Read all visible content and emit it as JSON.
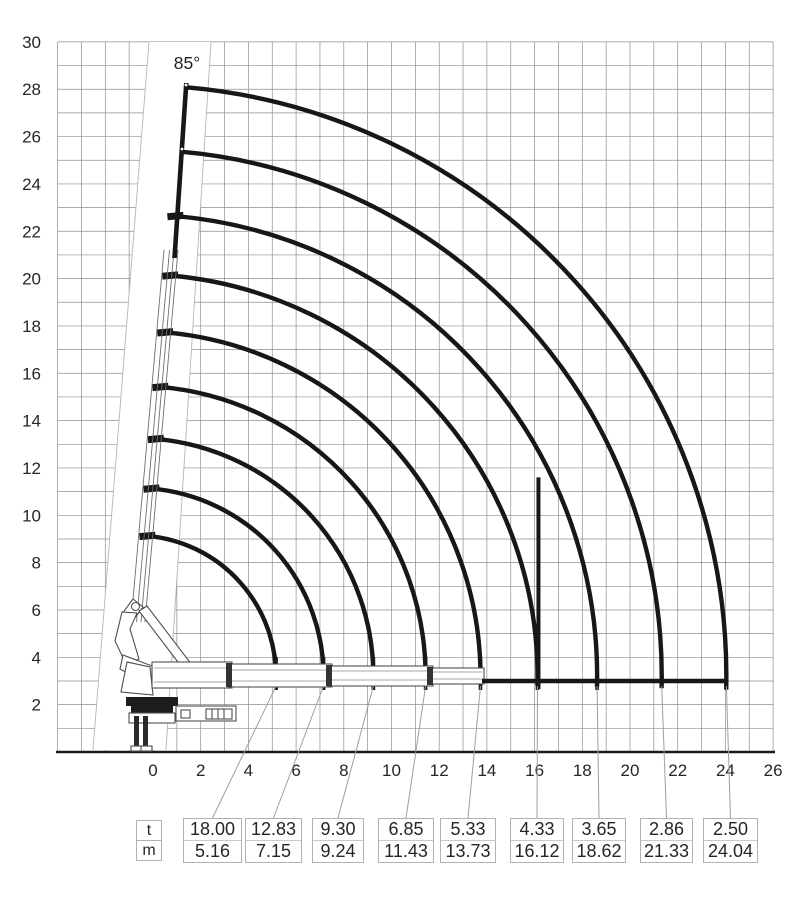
{
  "angle_label": "85°",
  "axes": {
    "x_ticks": [
      "0",
      "2",
      "4",
      "6",
      "8",
      "10",
      "12",
      "14",
      "16",
      "18",
      "20",
      "22",
      "24",
      "26"
    ],
    "y_ticks": [
      "30",
      "28",
      "26",
      "24",
      "22",
      "20",
      "18",
      "16",
      "14",
      "12",
      "10",
      "8",
      "6",
      "4",
      "2"
    ],
    "grid_left_m": -4,
    "grid_right_m": 26,
    "grid_top_m": 30,
    "grid_bottom_m": 0
  },
  "diagram": {
    "boom_angle_deg": 85,
    "drop_line": {
      "at_reach_m": 16.12,
      "top_height_m": 11.6,
      "bottom_height_m": 2.7
    },
    "arc_end_height_m": 3.0
  },
  "load_table": {
    "row_labels": {
      "capacity": "t",
      "reach": "m"
    },
    "columns": [
      {
        "t": "18.00",
        "m": "5.16"
      },
      {
        "t": "12.83",
        "m": "7.15"
      },
      {
        "t": "9.30",
        "m": "9.24"
      },
      {
        "t": "6.85",
        "m": "11.43"
      },
      {
        "t": "5.33",
        "m": "13.73"
      },
      {
        "t": "4.33",
        "m": "16.12"
      },
      {
        "t": "3.65",
        "m": "18.62"
      },
      {
        "t": "2.86",
        "m": "21.33"
      },
      {
        "t": "2.50",
        "m": "24.04"
      }
    ]
  },
  "chart_data": {
    "type": "line",
    "subtype": "crane-working-range-load-diagram",
    "title": "",
    "xlabel": "",
    "ylabel": "",
    "x_axis_ticks_m": [
      0,
      2,
      4,
      6,
      8,
      10,
      12,
      14,
      16,
      18,
      20,
      22,
      24,
      26
    ],
    "y_axis_ticks_m": [
      2,
      4,
      6,
      8,
      10,
      12,
      14,
      16,
      18,
      20,
      22,
      24,
      26,
      28,
      30
    ],
    "boom_angle_deg": 85,
    "points": [
      {
        "capacity_t": 18.0,
        "reach_m": 5.16,
        "arc_max_height_m": 9.1
      },
      {
        "capacity_t": 12.83,
        "reach_m": 7.15,
        "arc_max_height_m": 11.2
      },
      {
        "capacity_t": 9.3,
        "reach_m": 9.24,
        "arc_max_height_m": 13.2
      },
      {
        "capacity_t": 6.85,
        "reach_m": 11.43,
        "arc_max_height_m": 15.4
      },
      {
        "capacity_t": 5.33,
        "reach_m": 13.73,
        "arc_max_height_m": 17.7
      },
      {
        "capacity_t": 4.33,
        "reach_m": 16.12,
        "arc_max_height_m": 20.1
      },
      {
        "capacity_t": 3.65,
        "reach_m": 18.62,
        "arc_max_height_m": 22.6
      },
      {
        "capacity_t": 2.86,
        "reach_m": 21.33,
        "arc_max_height_m": 25.4
      },
      {
        "capacity_t": 2.5,
        "reach_m": 24.04,
        "arc_max_height_m": 28.1
      }
    ],
    "vertical_boundary_at_m": 16.12,
    "grid": "on",
    "legend": "none"
  },
  "colors": {
    "arc": "#171717",
    "grid": "#8e8e8e",
    "axis": "#1b1b1b",
    "text": "#262626",
    "leader": "#9f9f9f",
    "crane_outline": "#4f4f4f",
    "table_border": "#b2b2b2"
  }
}
